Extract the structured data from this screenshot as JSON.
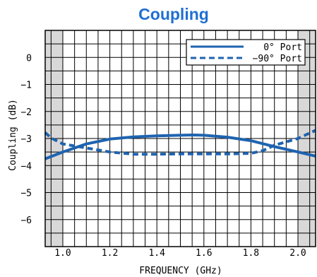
{
  "colors": {
    "title": "#1f6fd1",
    "series": "#1e63b0",
    "grid": "#000000",
    "shade": "#d8d8d8"
  },
  "chart_data": {
    "type": "line",
    "title": "Coupling",
    "xlabel": "FREQUENCY (GHz)",
    "ylabel": "Coupling (dB)",
    "xlim": [
      0.925,
      2.075
    ],
    "ylim": [
      -7,
      1
    ],
    "shaded_x_ranges": [
      [
        0.925,
        1.0
      ],
      [
        2.0,
        2.075
      ]
    ],
    "xticks": [
      1.0,
      1.2,
      1.4,
      1.6,
      1.8,
      2.0
    ],
    "xtick_labels": [
      "1.0",
      "1.2",
      "1.4",
      "1.6",
      "1.8",
      "2.0"
    ],
    "yticks": [
      0,
      -1,
      -2,
      -3,
      -4,
      -5,
      -6
    ],
    "ytick_labels": [
      "0",
      "−1",
      "−2",
      "−3",
      "−4",
      "−5",
      "−6"
    ],
    "grid": true,
    "legend_position": "top-right",
    "series": [
      {
        "name": "0°  Port",
        "style": "solid",
        "x": [
          0.925,
          1.0,
          1.1,
          1.2,
          1.3,
          1.4,
          1.5,
          1.55,
          1.6,
          1.7,
          1.8,
          1.9,
          2.0,
          2.075
        ],
        "y": [
          -3.75,
          -3.5,
          -3.2,
          -3.02,
          -2.94,
          -2.9,
          -2.88,
          -2.87,
          -2.88,
          -2.95,
          -3.08,
          -3.3,
          -3.5,
          -3.65
        ]
      },
      {
        "name": "−90°  Port",
        "style": "dashed",
        "x": [
          0.925,
          0.95,
          1.0,
          1.1,
          1.2,
          1.3,
          1.4,
          1.5,
          1.6,
          1.7,
          1.8,
          1.85,
          1.9,
          2.0,
          2.075
        ],
        "y": [
          -2.78,
          -2.98,
          -3.2,
          -3.35,
          -3.5,
          -3.58,
          -3.58,
          -3.57,
          -3.57,
          -3.57,
          -3.55,
          -3.45,
          -3.25,
          -3.0,
          -2.7
        ]
      }
    ]
  }
}
